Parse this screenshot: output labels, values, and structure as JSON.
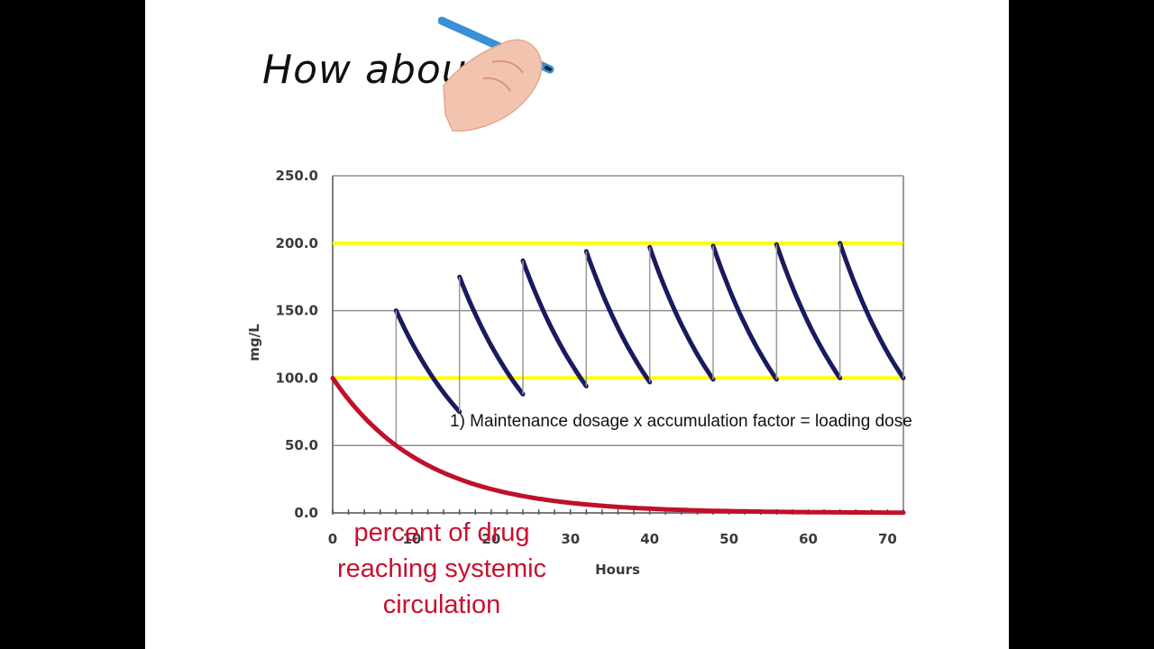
{
  "slide": {
    "title": "How abou",
    "annotation": "1) Maintenance dosage x accumulation factor = loading dose",
    "red_note": "percent of drug reaching systemic circulation"
  },
  "colors": {
    "background": "#000000",
    "slide": "#ffffff",
    "maintenance_curve": "#1a1a5e",
    "single_dose_curve": "#c0102a",
    "therapeutic_window_lines": "#ffff00",
    "red_note": "#c8102e"
  },
  "chart_data": {
    "type": "line",
    "xlabel": "Hours",
    "ylabel": "mg/L",
    "xlim": [
      0,
      72
    ],
    "ylim": [
      0,
      250
    ],
    "y_ticks": [
      "250.0",
      "200.0",
      "150.0",
      "100.0",
      "50.0",
      "0.0"
    ],
    "x_ticks": [
      "0",
      "10",
      "20",
      "30",
      "40",
      "50",
      "60",
      "70"
    ],
    "grid": true,
    "reference_lines": [
      {
        "y": 200,
        "color": "#ffff00"
      },
      {
        "y": 100,
        "color": "#ffff00"
      }
    ],
    "dose_interval": 8,
    "series": [
      {
        "peaks": [
          {
            "x": 8,
            "y": 150
          },
          {
            "x": 16,
            "y": 175
          },
          {
            "x": 24,
            "y": 187
          },
          {
            "x": 32,
            "y": 194
          },
          {
            "x": 40,
            "y": 197
          },
          {
            "x": 48,
            "y": 198
          },
          {
            "x": 56,
            "y": 199
          },
          {
            "x": 64,
            "y": 200
          }
        ],
        "troughs": [
          {
            "x": 16,
            "y": 75
          },
          {
            "x": 24,
            "y": 88
          },
          {
            "x": 32,
            "y": 94
          },
          {
            "x": 40,
            "y": 97
          },
          {
            "x": 48,
            "y": 99
          },
          {
            "x": 56,
            "y": 99
          },
          {
            "x": 64,
            "y": 100
          },
          {
            "x": 72,
            "y": 100
          }
        ],
        "color": "#1a1a5e"
      },
      {
        "start": {
          "x": 0,
          "y": 100
        },
        "half_life_hours": 8,
        "points": [
          {
            "x": 0,
            "y": 100
          },
          {
            "x": 8,
            "y": 50
          },
          {
            "x": 16,
            "y": 25
          },
          {
            "x": 24,
            "y": 12.5
          },
          {
            "x": 32,
            "y": 6.25
          },
          {
            "x": 40,
            "y": 3.1
          },
          {
            "x": 48,
            "y": 1.6
          },
          {
            "x": 56,
            "y": 0.8
          },
          {
            "x": 64,
            "y": 0.4
          },
          {
            "x": 72,
            "y": 0.2
          }
        ],
        "color": "#c0102a"
      }
    ]
  }
}
